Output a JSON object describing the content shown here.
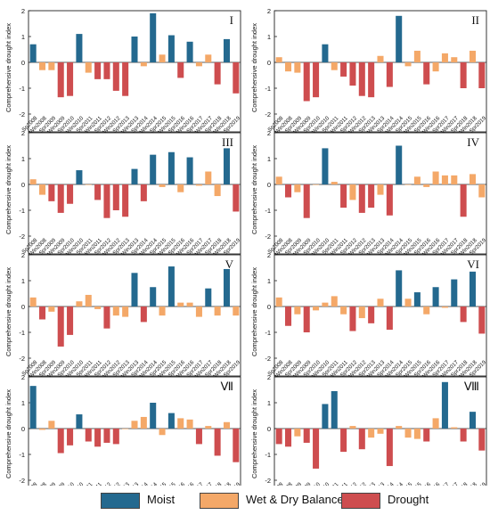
{
  "categories": [
    "Sp2008",
    "Win2008",
    "Spr2009",
    "Win2009",
    "Spr2010",
    "Win2010",
    "Spr2011",
    "Win2011",
    "Spr2012",
    "Win2012",
    "Spr2013",
    "Win2013",
    "Spr2014",
    "Win2014",
    "Spr2015",
    "Win2015",
    "Spr2016",
    "Win2016",
    "Spr2017",
    "Win2017",
    "Spr2018",
    "Win2018",
    "Spr2019"
  ],
  "colors": {
    "Moist": "#24698f",
    "Wet & Dry Balance": "#f4a868",
    "Drought": "#ce4d4f"
  },
  "legend": [
    {
      "label": "Moist",
      "color": "#24698f"
    },
    {
      "label": "Wet & Dry Balance",
      "color": "#f4a868"
    },
    {
      "label": "Drought",
      "color": "#ce4d4f"
    }
  ],
  "chart_data": [
    {
      "type": "bar",
      "title": "I",
      "ylabel": "Comprehensive drought index",
      "ylim": [
        -2,
        2
      ],
      "yticks": [
        -2,
        -1,
        0,
        1,
        2
      ],
      "values": [
        0.7,
        -0.3,
        -0.3,
        -1.35,
        -1.3,
        1.1,
        -0.4,
        -0.65,
        -0.65,
        -1.1,
        -1.3,
        1.0,
        -0.15,
        1.9,
        0.3,
        1.05,
        -0.6,
        0.8,
        -0.15,
        0.3,
        -0.85,
        0.9,
        -1.2
      ],
      "classes": [
        "Moist",
        "Wet & Dry Balance",
        "Wet & Dry Balance",
        "Drought",
        "Drought",
        "Moist",
        "Wet & Dry Balance",
        "Drought",
        "Drought",
        "Drought",
        "Drought",
        "Moist",
        "Wet & Dry Balance",
        "Moist",
        "Wet & Dry Balance",
        "Moist",
        "Drought",
        "Moist",
        "Wet & Dry Balance",
        "Wet & Dry Balance",
        "Drought",
        "Moist",
        "Drought"
      ]
    },
    {
      "type": "bar",
      "title": "II",
      "ylabel": "Comprehensive drought index",
      "ylim": [
        -2,
        2
      ],
      "yticks": [
        -2,
        -1,
        0,
        1,
        2
      ],
      "values": [
        0.2,
        -0.35,
        -0.4,
        -1.5,
        -1.35,
        0.7,
        -0.3,
        -0.55,
        -0.9,
        -1.3,
        -1.35,
        0.25,
        -0.95,
        1.8,
        -0.15,
        0.45,
        -0.85,
        -0.35,
        0.35,
        0.2,
        -1.0,
        0.45,
        -1.0
      ],
      "classes": [
        "Wet & Dry Balance",
        "Wet & Dry Balance",
        "Wet & Dry Balance",
        "Drought",
        "Drought",
        "Moist",
        "Wet & Dry Balance",
        "Drought",
        "Drought",
        "Drought",
        "Drought",
        "Wet & Dry Balance",
        "Drought",
        "Moist",
        "Wet & Dry Balance",
        "Wet & Dry Balance",
        "Drought",
        "Wet & Dry Balance",
        "Wet & Dry Balance",
        "Wet & Dry Balance",
        "Drought",
        "Wet & Dry Balance",
        "Drought"
      ]
    },
    {
      "type": "bar",
      "title": "III",
      "ylabel": "Comprehensive drought index",
      "ylim": [
        -2,
        2
      ],
      "yticks": [
        -2,
        -1,
        0,
        1,
        2
      ],
      "values": [
        0.2,
        -0.4,
        -0.65,
        -1.1,
        -0.75,
        0.55,
        0.0,
        -0.6,
        -1.3,
        -1.0,
        -1.25,
        0.6,
        -0.65,
        1.15,
        -0.1,
        1.25,
        -0.3,
        1.05,
        -0.05,
        0.5,
        -0.45,
        1.4,
        -1.05
      ],
      "classes": [
        "Wet & Dry Balance",
        "Wet & Dry Balance",
        "Drought",
        "Drought",
        "Drought",
        "Moist",
        "Wet & Dry Balance",
        "Drought",
        "Drought",
        "Drought",
        "Drought",
        "Moist",
        "Drought",
        "Moist",
        "Wet & Dry Balance",
        "Moist",
        "Wet & Dry Balance",
        "Moist",
        "Wet & Dry Balance",
        "Wet & Dry Balance",
        "Wet & Dry Balance",
        "Moist",
        "Drought"
      ]
    },
    {
      "type": "bar",
      "title": "IV",
      "ylabel": "Comprehensive drought index",
      "ylim": [
        -2,
        2
      ],
      "yticks": [
        -2,
        -1,
        0,
        1,
        2
      ],
      "values": [
        0.3,
        -0.5,
        -0.3,
        -1.3,
        0.0,
        1.4,
        0.1,
        -0.9,
        -0.6,
        -1.1,
        -0.9,
        -0.4,
        -1.2,
        1.5,
        0.0,
        0.3,
        -0.1,
        0.5,
        0.35,
        0.35,
        -1.25,
        0.4,
        -0.5
      ],
      "classes": [
        "Wet & Dry Balance",
        "Drought",
        "Wet & Dry Balance",
        "Drought",
        "Wet & Dry Balance",
        "Moist",
        "Wet & Dry Balance",
        "Drought",
        "Wet & Dry Balance",
        "Drought",
        "Drought",
        "Wet & Dry Balance",
        "Drought",
        "Moist",
        "Wet & Dry Balance",
        "Wet & Dry Balance",
        "Wet & Dry Balance",
        "Wet & Dry Balance",
        "Wet & Dry Balance",
        "Wet & Dry Balance",
        "Drought",
        "Wet & Dry Balance",
        "Wet & Dry Balance"
      ]
    },
    {
      "type": "bar",
      "title": "V",
      "ylabel": "Comprehensive drought index",
      "ylim": [
        -2,
        2
      ],
      "yticks": [
        -2,
        -1,
        0,
        1,
        2
      ],
      "values": [
        0.35,
        -0.5,
        -0.2,
        -1.55,
        -1.1,
        0.2,
        0.45,
        -0.1,
        -0.85,
        -0.35,
        -0.4,
        1.3,
        -0.6,
        0.75,
        -0.35,
        1.55,
        0.15,
        0.15,
        -0.4,
        0.7,
        -0.35,
        1.45,
        -0.35
      ],
      "classes": [
        "Wet & Dry Balance",
        "Drought",
        "Wet & Dry Balance",
        "Drought",
        "Drought",
        "Wet & Dry Balance",
        "Wet & Dry Balance",
        "Wet & Dry Balance",
        "Drought",
        "Wet & Dry Balance",
        "Wet & Dry Balance",
        "Moist",
        "Drought",
        "Moist",
        "Wet & Dry Balance",
        "Moist",
        "Wet & Dry Balance",
        "Wet & Dry Balance",
        "Wet & Dry Balance",
        "Moist",
        "Wet & Dry Balance",
        "Moist",
        "Wet & Dry Balance"
      ]
    },
    {
      "type": "bar",
      "title": "VI",
      "ylabel": "Comprehensive drought index",
      "ylim": [
        -2,
        2
      ],
      "yticks": [
        -2,
        -1,
        0,
        1,
        2
      ],
      "values": [
        0.35,
        -0.75,
        -0.3,
        -1.0,
        -0.15,
        0.15,
        0.4,
        -0.3,
        -0.95,
        -0.45,
        -0.65,
        0.3,
        -0.9,
        1.4,
        0.3,
        0.55,
        -0.3,
        0.75,
        -0.05,
        1.05,
        -0.6,
        1.35,
        -1.05
      ],
      "classes": [
        "Wet & Dry Balance",
        "Drought",
        "Wet & Dry Balance",
        "Drought",
        "Wet & Dry Balance",
        "Wet & Dry Balance",
        "Wet & Dry Balance",
        "Wet & Dry Balance",
        "Drought",
        "Wet & Dry Balance",
        "Drought",
        "Wet & Dry Balance",
        "Drought",
        "Moist",
        "Wet & Dry Balance",
        "Moist",
        "Wet & Dry Balance",
        "Moist",
        "Wet & Dry Balance",
        "Moist",
        "Drought",
        "Moist",
        "Drought"
      ]
    },
    {
      "type": "bar",
      "title": "Ⅶ",
      "ylabel": "Comprehensive drought index",
      "ylim": [
        -2,
        2
      ],
      "yticks": [
        -2,
        -1,
        0,
        1,
        2
      ],
      "values": [
        1.65,
        -0.05,
        0.3,
        -0.95,
        -0.65,
        0.55,
        -0.5,
        -0.7,
        -0.55,
        -0.6,
        0.0,
        0.3,
        0.45,
        1.0,
        -0.25,
        0.6,
        0.4,
        0.35,
        -0.6,
        0.1,
        -1.05,
        0.25,
        -1.3
      ],
      "classes": [
        "Moist",
        "Wet & Dry Balance",
        "Wet & Dry Balance",
        "Drought",
        "Drought",
        "Moist",
        "Drought",
        "Drought",
        "Drought",
        "Drought",
        "Wet & Dry Balance",
        "Wet & Dry Balance",
        "Wet & Dry Balance",
        "Moist",
        "Wet & Dry Balance",
        "Moist",
        "Wet & Dry Balance",
        "Wet & Dry Balance",
        "Drought",
        "Wet & Dry Balance",
        "Drought",
        "Wet & Dry Balance",
        "Drought"
      ]
    },
    {
      "type": "bar",
      "title": "Ⅷ",
      "ylabel": "Comprehensive drought index",
      "ylim": [
        -2,
        2
      ],
      "yticks": [
        -2,
        -1,
        0,
        1,
        2
      ],
      "values": [
        -0.6,
        -0.7,
        -0.3,
        -0.55,
        -1.55,
        0.95,
        1.45,
        -0.9,
        0.1,
        -0.8,
        -0.35,
        -0.2,
        -1.45,
        0.1,
        -0.35,
        -0.4,
        -0.5,
        0.4,
        1.8,
        0.05,
        -0.5,
        0.65,
        -0.85
      ],
      "classes": [
        "Drought",
        "Drought",
        "Wet & Dry Balance",
        "Drought",
        "Drought",
        "Moist",
        "Moist",
        "Drought",
        "Wet & Dry Balance",
        "Drought",
        "Wet & Dry Balance",
        "Wet & Dry Balance",
        "Drought",
        "Wet & Dry Balance",
        "Wet & Dry Balance",
        "Wet & Dry Balance",
        "Drought",
        "Wet & Dry Balance",
        "Moist",
        "Wet & Dry Balance",
        "Drought",
        "Moist",
        "Drought"
      ]
    }
  ]
}
